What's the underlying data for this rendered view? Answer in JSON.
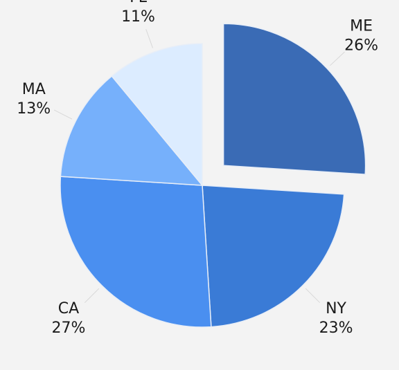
{
  "chart_data": {
    "type": "pie",
    "categories": [
      "ME",
      "NY",
      "CA",
      "MA",
      "FL"
    ],
    "values": [
      26,
      23,
      27,
      13,
      11
    ],
    "value_labels": [
      "26%",
      "23%",
      "27%",
      "13%",
      "11%"
    ],
    "colors": [
      "#3a6bb5",
      "#3a7bd6",
      "#4a8ff0",
      "#76b0fb",
      "#dcecff"
    ],
    "exploded": [
      true,
      false,
      false,
      false,
      false
    ]
  }
}
